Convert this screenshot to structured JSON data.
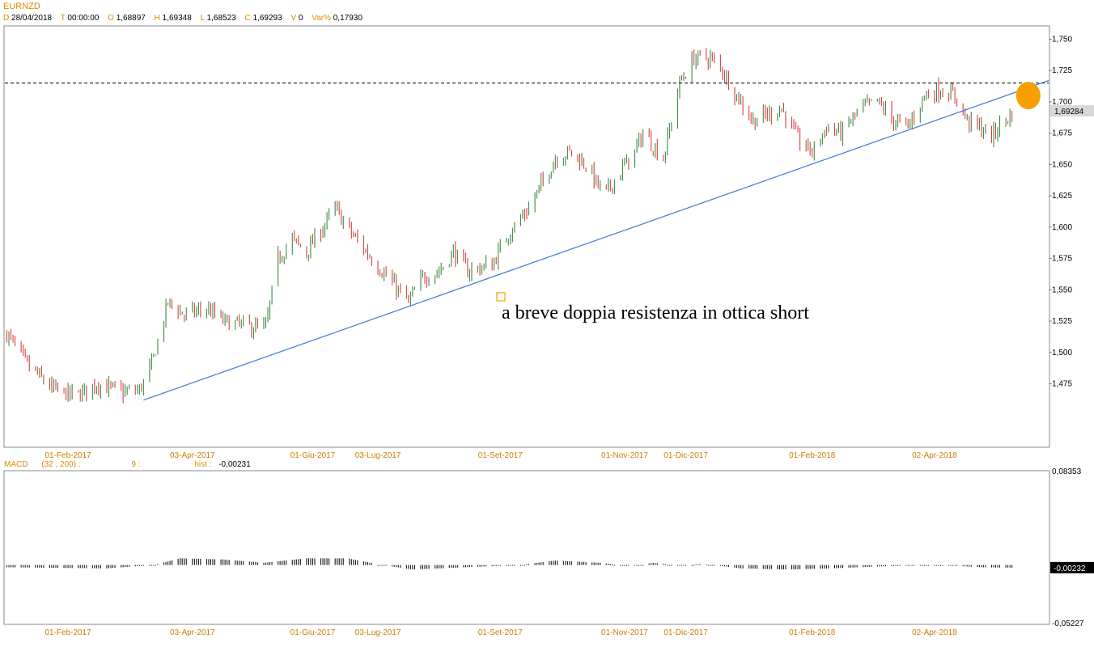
{
  "header": {
    "symbol": "EURNZD",
    "d_key": "D",
    "d_val": "28/04/2018",
    "t_key": "T",
    "t_val": "00:00:00",
    "o_key": "O",
    "o_val": "1,68897",
    "h_key": "H",
    "h_val": "1,69348",
    "l_key": "L",
    "l_val": "1,68523",
    "c_key": "C",
    "c_val": "1,69293",
    "v_key": "V",
    "v_val": "0",
    "var_key": "Var%",
    "var_val": "0,17930"
  },
  "macd_header": {
    "name": "MACD",
    "params": "(32 , 200) :",
    "signal": "9 :",
    "hist_key": "hist :",
    "hist_val": "-0,00231"
  },
  "annotation": "a breve doppia resistenza in ottica short",
  "colors": {
    "up": "#2e7d32",
    "down": "#d32f2f",
    "trendline": "#3c78d8",
    "marker": "#f5a000",
    "axis_label": "#c98000"
  },
  "chart_data": [
    {
      "type": "candlestick",
      "symbol": "EURNZD",
      "timeframe": "daily",
      "ylim": [
        1.425,
        1.76
      ],
      "yticks": [
        "1,750",
        "1,725",
        "1,700",
        "1,675",
        "1,650",
        "1,625",
        "1,600",
        "1,575",
        "1,550",
        "1,525",
        "1,500",
        "1,475"
      ],
      "ytick_values": [
        1.75,
        1.725,
        1.7,
        1.675,
        1.65,
        1.625,
        1.6,
        1.575,
        1.55,
        1.525,
        1.5,
        1.475
      ],
      "current_price_label": "1,69284",
      "current_price": 1.69284,
      "xtick_labels": [
        "01-Feb-2017",
        "03-Apr-2017",
        "01-Giu-2017",
        "03-Lug-2017",
        "01-Set-2017",
        "01-Nov-2017",
        "01-Dic-2017",
        "01-Feb-2018",
        "02-Apr-2018"
      ],
      "xtick_dates": [
        "2017-02-01",
        "2017-04-03",
        "2017-06-01",
        "2017-07-03",
        "2017-09-01",
        "2017-11-01",
        "2017-12-01",
        "2018-02-01",
        "2018-04-02"
      ],
      "x_range": [
        "2017-01-01",
        "2018-05-28"
      ],
      "close_path": [
        [
          "2017-01-02",
          1.515
        ],
        [
          "2017-01-12",
          1.49
        ],
        [
          "2017-01-25",
          1.47
        ],
        [
          "2017-02-05",
          1.465
        ],
        [
          "2017-02-15",
          1.475
        ],
        [
          "2017-02-28",
          1.468
        ],
        [
          "2017-03-08",
          1.47
        ],
        [
          "2017-03-14",
          1.49
        ],
        [
          "2017-03-22",
          1.54
        ],
        [
          "2017-03-30",
          1.53
        ],
        [
          "2017-04-10",
          1.535
        ],
        [
          "2017-04-18",
          1.525
        ],
        [
          "2017-05-02",
          1.52
        ],
        [
          "2017-05-09",
          1.52
        ],
        [
          "2017-05-15",
          1.575
        ],
        [
          "2017-05-22",
          1.59
        ],
        [
          "2017-05-29",
          1.58
        ],
        [
          "2017-06-06",
          1.6
        ],
        [
          "2017-06-12",
          1.615
        ],
        [
          "2017-06-20",
          1.595
        ],
        [
          "2017-06-30",
          1.575
        ],
        [
          "2017-07-10",
          1.555
        ],
        [
          "2017-07-18",
          1.54
        ],
        [
          "2017-07-25",
          1.56
        ],
        [
          "2017-08-02",
          1.565
        ],
        [
          "2017-08-09",
          1.58
        ],
        [
          "2017-08-16",
          1.565
        ],
        [
          "2017-08-28",
          1.57
        ],
        [
          "2017-09-05",
          1.595
        ],
        [
          "2017-09-15",
          1.615
        ],
        [
          "2017-09-28",
          1.655
        ],
        [
          "2017-10-05",
          1.66
        ],
        [
          "2017-10-13",
          1.65
        ],
        [
          "2017-10-22",
          1.625
        ],
        [
          "2017-10-30",
          1.645
        ],
        [
          "2017-11-06",
          1.66
        ],
        [
          "2017-11-10",
          1.675
        ],
        [
          "2017-11-20",
          1.655
        ],
        [
          "2017-11-28",
          1.715
        ],
        [
          "2017-12-05",
          1.735
        ],
        [
          "2017-12-13",
          1.735
        ],
        [
          "2017-12-19",
          1.725
        ],
        [
          "2017-12-26",
          1.705
        ],
        [
          "2018-01-03",
          1.685
        ],
        [
          "2018-01-10",
          1.69
        ],
        [
          "2018-01-17",
          1.695
        ],
        [
          "2018-01-25",
          1.67
        ],
        [
          "2018-02-01",
          1.66
        ],
        [
          "2018-02-08",
          1.68
        ],
        [
          "2018-02-15",
          1.675
        ],
        [
          "2018-02-25",
          1.695
        ],
        [
          "2018-03-05",
          1.7
        ],
        [
          "2018-03-13",
          1.685
        ],
        [
          "2018-03-20",
          1.68
        ],
        [
          "2018-03-28",
          1.705
        ],
        [
          "2018-04-05",
          1.71
        ],
        [
          "2018-04-12",
          1.705
        ],
        [
          "2018-04-18",
          1.685
        ],
        [
          "2018-04-24",
          1.68
        ],
        [
          "2018-04-30",
          1.672
        ],
        [
          "2018-05-06",
          1.685
        ],
        [
          "2018-05-10",
          1.69
        ]
      ],
      "horizontal_line": {
        "value": 1.715,
        "style": "dashed"
      },
      "trendline": {
        "from": [
          "2017-03-10",
          1.462
        ],
        "to": [
          "2018-05-28",
          1.717
        ]
      },
      "marker": {
        "date": "2018-05-18",
        "value": 1.705
      }
    },
    {
      "type": "histogram",
      "name": "MACD (32,200) signal 9",
      "ylim": [
        -0.05227,
        0.08353
      ],
      "yticks": [
        "0,08353",
        "-0,05227"
      ],
      "ytick_values": [
        0.08353,
        -0.05227
      ],
      "last_value_label": "-0,00232",
      "last_value": -0.00232,
      "zero_level": 0,
      "hist_path": [
        [
          "2017-01-02",
          -0.002
        ],
        [
          "2017-02-20",
          -0.003
        ],
        [
          "2017-03-15",
          0.0
        ],
        [
          "2017-03-28",
          0.006
        ],
        [
          "2017-04-18",
          0.005
        ],
        [
          "2017-05-08",
          0.002
        ],
        [
          "2017-05-29",
          0.006
        ],
        [
          "2017-06-18",
          0.006
        ],
        [
          "2017-07-05",
          0.0
        ],
        [
          "2017-07-20",
          -0.004
        ],
        [
          "2017-08-15",
          -0.002
        ],
        [
          "2017-09-10",
          0.0
        ],
        [
          "2017-09-28",
          0.004
        ],
        [
          "2017-10-20",
          0.002
        ],
        [
          "2017-11-05",
          -0.001
        ],
        [
          "2017-11-15",
          0.002
        ],
        [
          "2017-11-25",
          0.0
        ],
        [
          "2017-12-10",
          0.001
        ],
        [
          "2017-12-28",
          -0.003
        ],
        [
          "2018-01-20",
          -0.004
        ],
        [
          "2018-02-10",
          -0.003
        ],
        [
          "2018-03-10",
          -0.001
        ],
        [
          "2018-04-05",
          0.0
        ],
        [
          "2018-04-25",
          -0.002
        ],
        [
          "2018-05-10",
          -0.00232
        ]
      ]
    }
  ]
}
